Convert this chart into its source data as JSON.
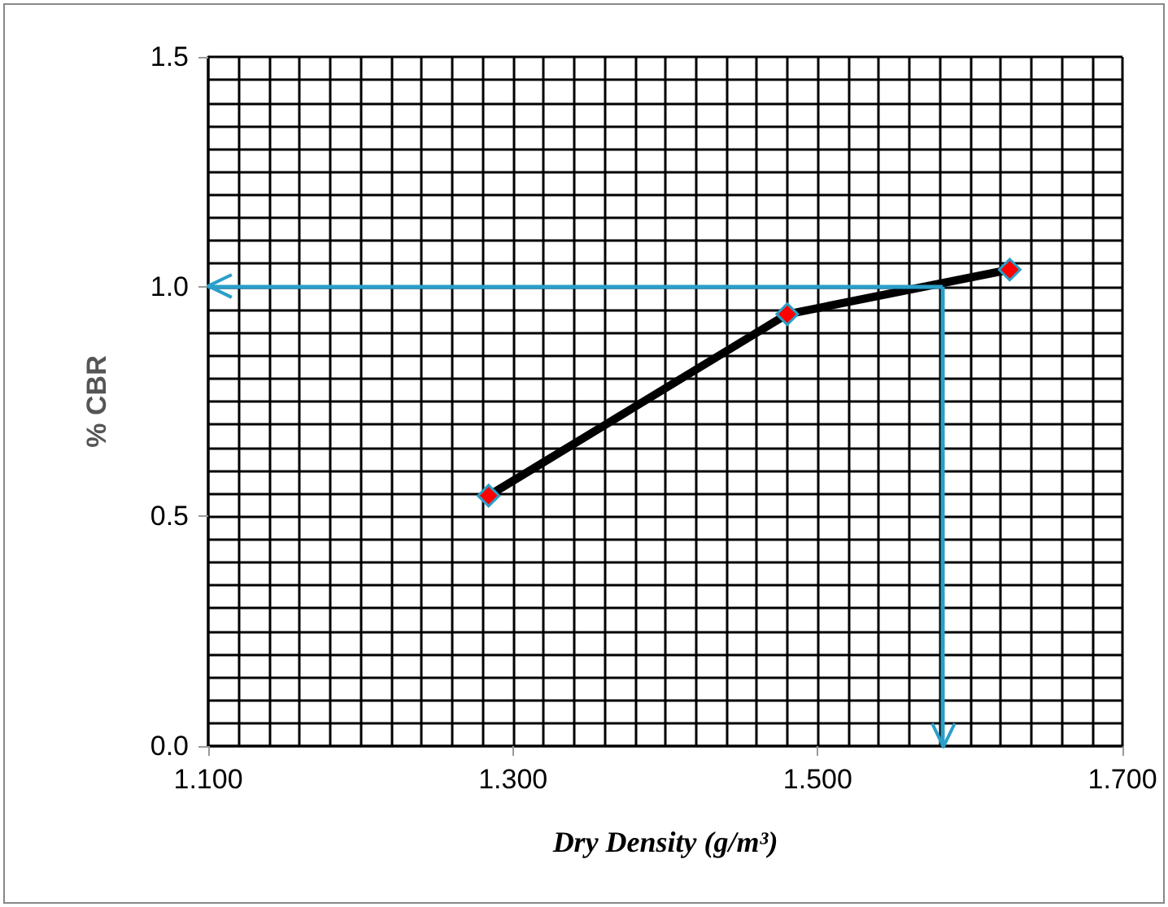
{
  "chart_data": {
    "type": "line",
    "x": [
      1.284,
      1.48,
      1.626
    ],
    "series": [
      {
        "color": "#000000",
        "values": [
          0.545,
          0.94,
          1.037
        ]
      }
    ],
    "xlabel": "Dry Density (g/m³)",
    "ylabel": "% CBR",
    "xlim": [
      1.1,
      1.7
    ],
    "xticks": [
      {
        "value": 1.1,
        "label": "1.100"
      },
      {
        "value": 1.3,
        "label": "1.300"
      },
      {
        "value": 1.5,
        "label": "1.500"
      },
      {
        "value": 1.7,
        "label": "1.700"
      }
    ],
    "ylim": [
      0,
      1.5
    ],
    "yticks": [
      {
        "value": 0,
        "label": "0.0"
      },
      {
        "value": 0.5,
        "label": "0.5"
      },
      {
        "value": 1.0,
        "label": "1.0"
      },
      {
        "value": 1.5,
        "label": "1.5"
      }
    ],
    "ref_lines": [
      {
        "axis": "y",
        "value": 1.0,
        "color": "#2a9fc9"
      },
      {
        "axis": "x",
        "value": 1.582,
        "color": "#2a9fc9"
      }
    ],
    "grid": true,
    "marker": "diamond",
    "line_style": "solid"
  }
}
